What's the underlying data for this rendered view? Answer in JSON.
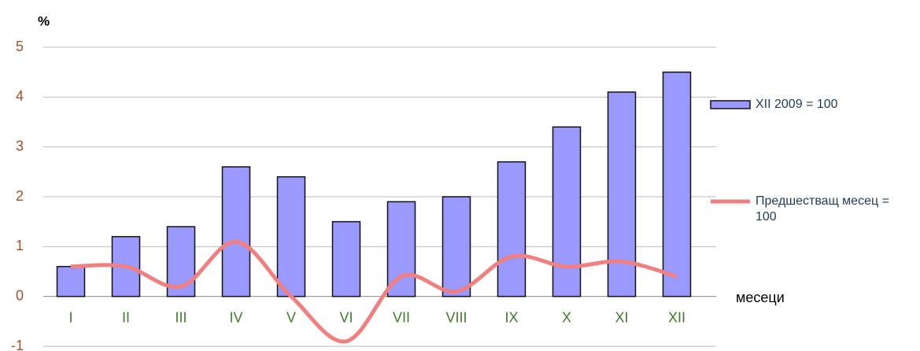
{
  "chart_data": {
    "type": "combo",
    "y_label": "%",
    "x_label": "месеци",
    "categories": [
      "I",
      "II",
      "III",
      "IV",
      "V",
      "VI",
      "VII",
      "VIII",
      "IX",
      "X",
      "XI",
      "XII"
    ],
    "series": [
      {
        "name": "XII 2009 = 100",
        "type": "bar",
        "color": "#9999ff",
        "values": [
          0.6,
          1.2,
          1.4,
          2.6,
          2.4,
          1.5,
          1.9,
          2.0,
          2.7,
          3.4,
          4.1,
          4.5
        ]
      },
      {
        "name": "Предшестващ месец = 100",
        "type": "line",
        "color": "#f08080",
        "values": [
          0.6,
          0.6,
          0.2,
          1.1,
          0.0,
          -0.9,
          0.4,
          0.1,
          0.8,
          0.6,
          0.7,
          0.4
        ]
      }
    ],
    "ylim": [
      -1,
      5
    ],
    "yticks": [
      -1,
      0,
      1,
      2,
      3,
      4,
      5
    ],
    "grid": true
  }
}
